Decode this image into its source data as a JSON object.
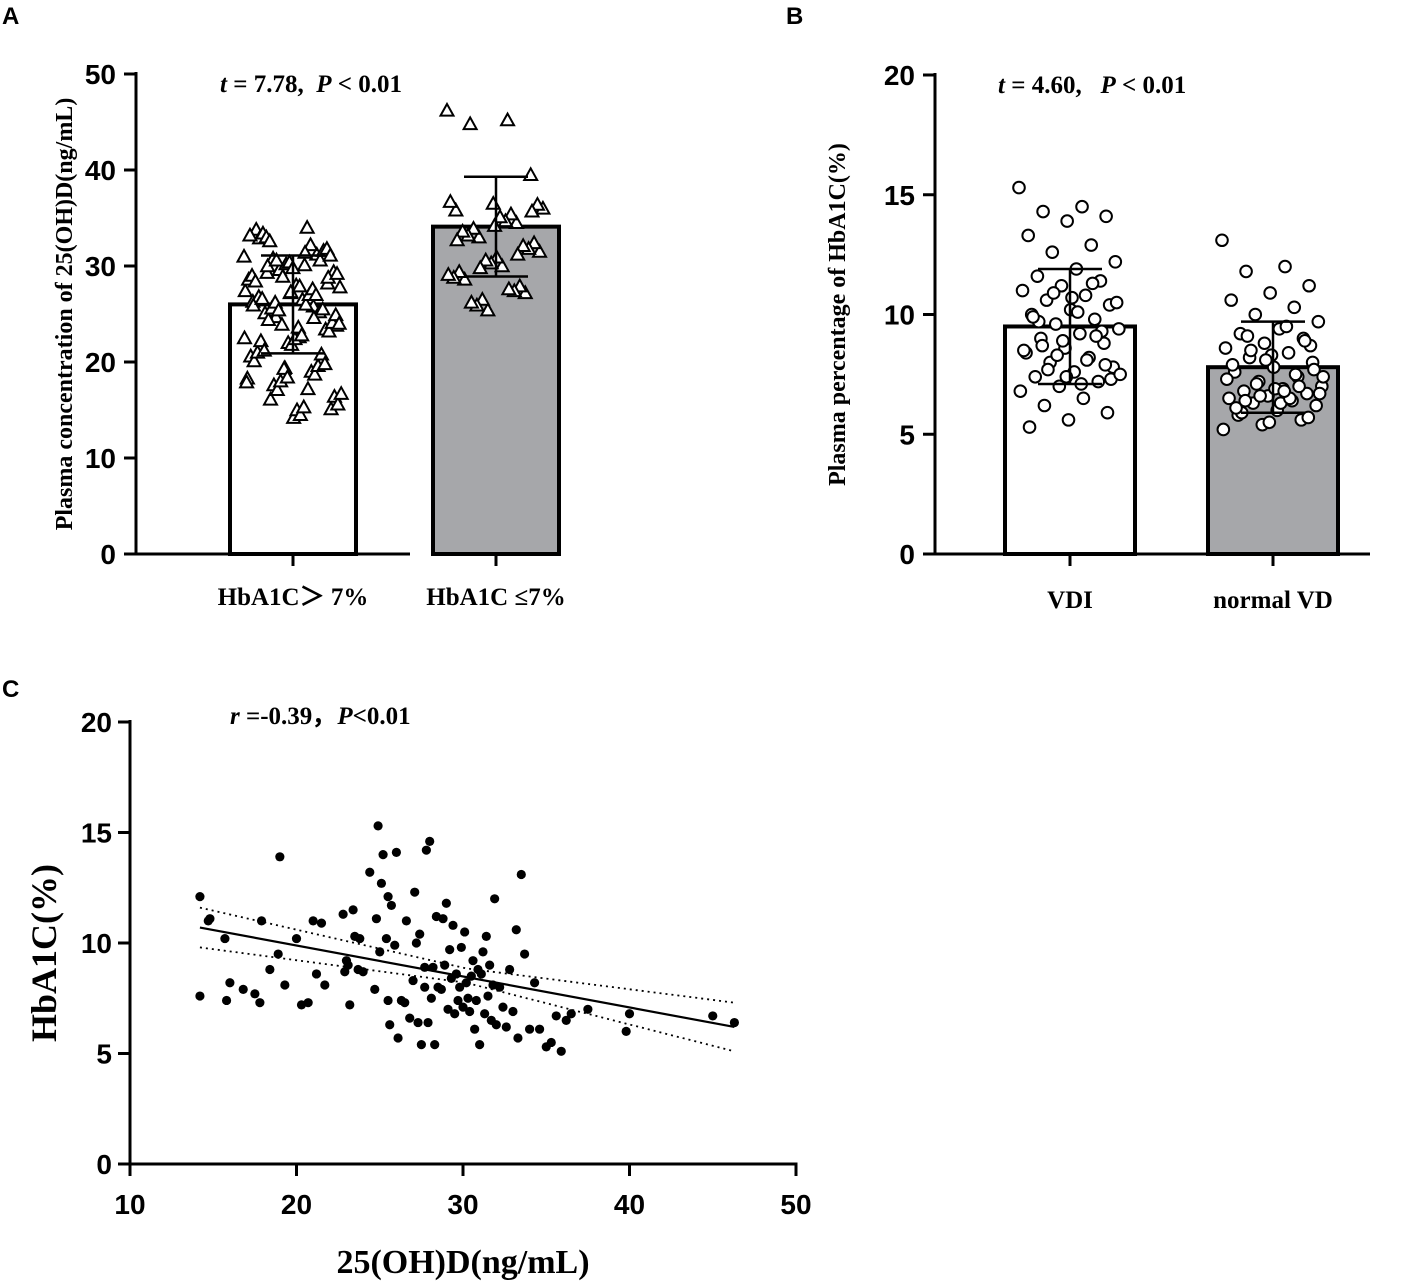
{
  "chart_data": [
    {
      "panel": "A",
      "type": "bar",
      "ylabel": "Plasma concentration of 25(OH)D(ng/mL)",
      "ylim": [
        0,
        50
      ],
      "yticks": [
        "0",
        "10",
        "20",
        "30",
        "40",
        "50"
      ],
      "categories": [
        "HbA1C＞ 7%",
        "HbA1C ≤7%"
      ],
      "bar_fills": [
        "#ffffff",
        "#a6a7aa"
      ],
      "means": [
        26.0,
        34.1
      ],
      "sd": [
        5.1,
        5.2
      ],
      "marker": "triangle",
      "annotation": {
        "t_symbol": "t",
        "t_text": " = 7.78,  ",
        "p_symbol": "P",
        "p_text": " < 0.01"
      },
      "points": [
        [
          31.0,
          30.1,
          29.3,
          28.2,
          27.2,
          26.3,
          25.8,
          24.7,
          23.8,
          22.6,
          21.5,
          20.3,
          19.4,
          18.3,
          17.2,
          16.1,
          15.1,
          14.2,
          33.8,
          31.2,
          29.6,
          27.8,
          26.5,
          25.1,
          23.4,
          22.0,
          20.6,
          19.0,
          17.6,
          16.4,
          15.0,
          32.9,
          30.6,
          28.9,
          27.4,
          26.0,
          24.4,
          23.2,
          21.8,
          20.1,
          18.7,
          17.1,
          15.6,
          14.5,
          33.4,
          31.6,
          30.2,
          28.6,
          27.0,
          25.6,
          24.1,
          22.4,
          21.0,
          19.6,
          18.0,
          16.7,
          15.3,
          33.0,
          31.8,
          30.4,
          29.0,
          27.6,
          26.2,
          24.9,
          23.6,
          22.2,
          20.8,
          19.3,
          17.9,
          34.0,
          32.6,
          31.1,
          29.8,
          28.4,
          27.0,
          25.4,
          24.0,
          22.8,
          21.2,
          19.8,
          18.4,
          33.2,
          32.2,
          30.8,
          29.4,
          28.0,
          26.8,
          25.2,
          23.9,
          22.5,
          31.4,
          30.0,
          28.8,
          27.3,
          25.9,
          24.6,
          30.6,
          29.2,
          27.9,
          26.6,
          25.5
        ],
        [
          46.2,
          45.2,
          44.8,
          39.5,
          36.5,
          35.8,
          34.5,
          33.0,
          31.5,
          30.0,
          28.6,
          27.2,
          25.4,
          36.7,
          35.4,
          33.9,
          32.4,
          30.9,
          29.4,
          27.9,
          26.5,
          36.0,
          34.7,
          33.2,
          31.8,
          30.3,
          28.8,
          27.4,
          25.9,
          36.4,
          35.1,
          33.6,
          32.1,
          30.6,
          29.1,
          27.6,
          26.2,
          35.7,
          34.2,
          32.7,
          31.2,
          29.8
        ]
      ]
    },
    {
      "panel": "B",
      "type": "bar",
      "ylabel": "Plasma percentage of HbA1C(%)",
      "ylim": [
        0,
        20
      ],
      "yticks": [
        "0",
        "5",
        "10",
        "15",
        "20"
      ],
      "categories": [
        "VDI",
        "normal VD"
      ],
      "bar_fills": [
        "#ffffff",
        "#a6a7aa"
      ],
      "means": [
        9.5,
        7.8
      ],
      "sd": [
        2.4,
        1.9
      ],
      "marker": "circle",
      "annotation": {
        "t_symbol": "t",
        "t_text": " = 4.60,   ",
        "p_symbol": "P",
        "p_text": " < 0.01"
      },
      "points": [
        [
          15.3,
          14.5,
          14.3,
          14.1,
          13.9,
          13.3,
          12.9,
          12.6,
          12.2,
          11.9,
          11.6,
          11.4,
          11.2,
          11.0,
          10.8,
          10.6,
          10.4,
          10.2,
          10.0,
          9.8,
          9.6,
          9.4,
          9.2,
          9.0,
          8.8,
          8.6,
          8.4,
          8.2,
          8.0,
          7.8,
          7.6,
          7.4,
          7.2,
          7.0,
          6.8,
          6.5,
          6.2,
          5.9,
          5.6,
          5.3,
          11.3,
          10.9,
          10.5,
          10.1,
          9.7,
          9.3,
          8.9,
          8.5,
          8.1,
          7.7,
          7.3,
          10.7,
          9.9,
          9.1,
          8.3,
          7.5,
          7.1,
          8.7,
          7.9,
          7.4
        ],
        [
          13.1,
          12.0,
          11.8,
          11.2,
          10.9,
          10.6,
          10.3,
          10.0,
          9.7,
          9.4,
          9.2,
          9.0,
          8.8,
          8.6,
          8.4,
          8.2,
          8.0,
          7.8,
          7.6,
          7.4,
          7.2,
          7.0,
          6.9,
          6.8,
          6.7,
          6.6,
          6.5,
          6.4,
          6.3,
          6.2,
          6.0,
          5.8,
          5.6,
          5.4,
          5.2,
          9.5,
          9.1,
          8.7,
          8.3,
          7.9,
          7.5,
          7.1,
          6.7,
          6.3,
          5.9,
          8.9,
          8.1,
          7.3,
          6.5,
          8.5,
          7.7,
          6.9,
          6.1,
          7.0,
          6.6,
          7.4,
          6.8,
          6.4,
          5.7,
          5.5
        ]
      ]
    },
    {
      "panel": "C",
      "type": "scatter",
      "xlabel": "25(OH)D(ng/mL)",
      "ylabel": "HbA1C(%)",
      "xlim": [
        10,
        50
      ],
      "ylim": [
        0,
        20
      ],
      "xticks": [
        "10",
        "20",
        "30",
        "40",
        "50"
      ],
      "yticks": [
        "0",
        "5",
        "10",
        "15",
        "20"
      ],
      "annotation": {
        "r_symbol": "r",
        "r_text": " =-0.39，",
        "p_symbol": "P",
        "p_text": "<0.01"
      },
      "regression": {
        "x1": 14.2,
        "y1": 10.7,
        "x2": 46.3,
        "y2": 6.2
      },
      "ci_upper": [
        [
          14.2,
          11.6
        ],
        [
          30.2,
          8.85
        ],
        [
          46.3,
          7.3
        ]
      ],
      "ci_lower": [
        [
          14.2,
          9.8
        ],
        [
          30.2,
          8.2
        ],
        [
          46.3,
          5.1
        ]
      ],
      "x": [
        14.2,
        14.2,
        14.8,
        14.7,
        15.7,
        15.8,
        16.0,
        16.8,
        17.5,
        17.8,
        17.9,
        18.4,
        18.9,
        19.0,
        19.3,
        20.0,
        20.3,
        20.7,
        21.0,
        21.2,
        21.5,
        21.7,
        22.8,
        22.9,
        23.0,
        23.1,
        23.2,
        23.4,
        23.5,
        23.7,
        23.8,
        24.0,
        24.4,
        24.7,
        24.8,
        24.9,
        25.0,
        25.1,
        25.2,
        25.4,
        25.5,
        25.5,
        25.6,
        25.7,
        25.9,
        26.0,
        26.1,
        26.3,
        26.5,
        26.6,
        26.8,
        27.0,
        27.1,
        27.2,
        27.3,
        27.4,
        27.5,
        27.7,
        27.7,
        27.8,
        27.9,
        28.0,
        28.1,
        28.2,
        28.3,
        28.4,
        28.5,
        28.7,
        28.8,
        28.9,
        29.0,
        29.1,
        29.2,
        29.3,
        29.4,
        29.5,
        29.6,
        29.7,
        29.8,
        29.9,
        30.0,
        30.1,
        30.2,
        30.3,
        30.4,
        30.5,
        30.6,
        30.7,
        30.8,
        30.9,
        31.0,
        31.1,
        31.2,
        31.3,
        31.4,
        31.5,
        31.6,
        31.7,
        31.8,
        31.9,
        32.0,
        32.2,
        32.4,
        32.6,
        32.8,
        33.0,
        33.2,
        33.3,
        33.5,
        33.7,
        34.0,
        34.3,
        34.6,
        35.0,
        35.3,
        35.6,
        35.9,
        36.2,
        36.5,
        37.5,
        39.8,
        40.0,
        45.0,
        46.3
      ],
      "y": [
        12.1,
        7.6,
        11.1,
        11.0,
        10.2,
        7.4,
        8.2,
        7.9,
        7.7,
        7.3,
        11.0,
        8.8,
        9.5,
        13.9,
        8.1,
        10.2,
        7.2,
        7.3,
        11.0,
        8.6,
        10.9,
        8.1,
        11.3,
        8.7,
        9.2,
        9.0,
        7.2,
        11.5,
        10.3,
        8.8,
        10.2,
        8.7,
        13.2,
        7.9,
        11.1,
        15.3,
        9.6,
        12.7,
        14.0,
        10.2,
        12.1,
        7.4,
        6.3,
        11.7,
        9.9,
        14.1,
        5.7,
        7.4,
        7.3,
        11.0,
        6.6,
        8.3,
        12.3,
        10.0,
        6.4,
        10.4,
        5.4,
        8.9,
        8.0,
        14.2,
        6.4,
        14.6,
        7.5,
        8.9,
        5.4,
        11.2,
        8.0,
        7.9,
        11.1,
        9.0,
        11.8,
        7.0,
        9.7,
        8.4,
        10.8,
        6.8,
        8.6,
        7.4,
        8.0,
        9.8,
        7.1,
        10.5,
        8.2,
        7.5,
        6.9,
        8.5,
        9.2,
        6.1,
        7.4,
        8.8,
        5.4,
        8.6,
        9.6,
        6.8,
        10.3,
        7.6,
        9.0,
        6.5,
        8.1,
        12.0,
        6.3,
        8.0,
        7.1,
        6.2,
        8.8,
        6.9,
        10.6,
        5.7,
        13.1,
        9.5,
        6.1,
        8.2,
        6.1,
        5.3,
        5.5,
        6.7,
        5.1,
        6.5,
        6.8,
        7.0,
        6.0,
        6.8,
        6.7,
        6.4
      ]
    }
  ]
}
